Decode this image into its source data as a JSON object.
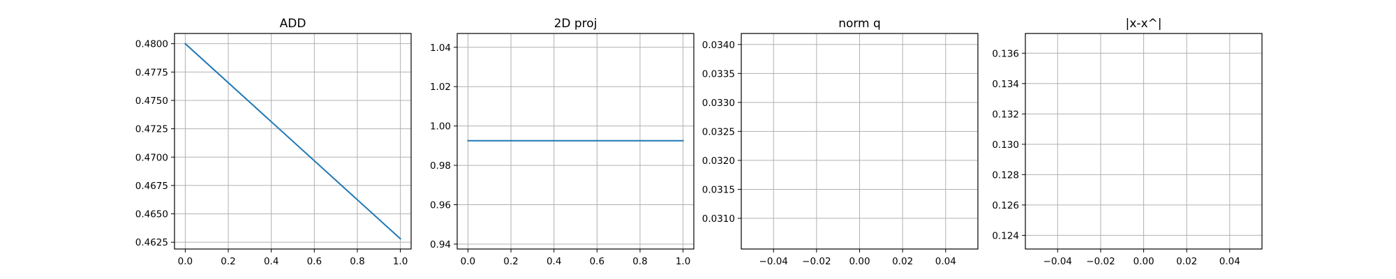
{
  "chart_data": [
    {
      "type": "line",
      "title": "ADD",
      "xlim": [
        -0.05,
        1.05
      ],
      "ylim": [
        0.4619,
        0.4809
      ],
      "x_ticks": [
        0.0,
        0.2,
        0.4,
        0.6,
        0.8,
        1.0
      ],
      "x_tick_labels": [
        "0.0",
        "0.2",
        "0.4",
        "0.6",
        "0.8",
        "1.0"
      ],
      "y_ticks": [
        0.4625,
        0.465,
        0.4675,
        0.47,
        0.4725,
        0.475,
        0.4775,
        0.48
      ],
      "y_tick_labels": [
        "0.4625",
        "0.4650",
        "0.4675",
        "0.4700",
        "0.4725",
        "0.4750",
        "0.4775",
        "0.4800"
      ],
      "grid": true,
      "series": [
        {
          "color": "#1f77b4",
          "x": [
            0.0,
            1.0
          ],
          "y": [
            0.48,
            0.4628
          ]
        }
      ]
    },
    {
      "type": "line",
      "title": "2D proj",
      "xlim": [
        -0.05,
        1.05
      ],
      "ylim": [
        0.9375,
        1.047
      ],
      "x_ticks": [
        0.0,
        0.2,
        0.4,
        0.6,
        0.8,
        1.0
      ],
      "x_tick_labels": [
        "0.0",
        "0.2",
        "0.4",
        "0.6",
        "0.8",
        "1.0"
      ],
      "y_ticks": [
        0.94,
        0.96,
        0.98,
        1.0,
        1.02,
        1.04
      ],
      "y_tick_labels": [
        "0.94",
        "0.96",
        "0.98",
        "1.00",
        "1.02",
        "1.04"
      ],
      "grid": true,
      "series": [
        {
          "color": "#1f77b4",
          "x": [
            0.0,
            1.0
          ],
          "y": [
            0.9925,
            0.9925
          ]
        }
      ]
    },
    {
      "type": "line",
      "title": "norm q",
      "xlim": [
        -0.055,
        0.055
      ],
      "ylim": [
        0.03047,
        0.03419
      ],
      "x_ticks": [
        -0.04,
        -0.02,
        0.0,
        0.02,
        0.04
      ],
      "x_tick_labels": [
        "−0.04",
        "−0.02",
        "0.00",
        "0.02",
        "0.04"
      ],
      "y_ticks": [
        0.031,
        0.0315,
        0.032,
        0.0325,
        0.033,
        0.0335,
        0.034
      ],
      "y_tick_labels": [
        "0.0310",
        "0.0315",
        "0.0320",
        "0.0325",
        "0.0330",
        "0.0335",
        "0.0340"
      ],
      "grid": true,
      "series": []
    },
    {
      "type": "line",
      "title": "|x-x^|",
      "xlim": [
        -0.055,
        0.055
      ],
      "ylim": [
        0.1231,
        0.1373
      ],
      "x_ticks": [
        -0.04,
        -0.02,
        0.0,
        0.02,
        0.04
      ],
      "x_tick_labels": [
        "−0.04",
        "−0.02",
        "0.00",
        "0.02",
        "0.04"
      ],
      "y_ticks": [
        0.124,
        0.126,
        0.128,
        0.13,
        0.132,
        0.134,
        0.136
      ],
      "y_tick_labels": [
        "0.124",
        "0.126",
        "0.128",
        "0.130",
        "0.132",
        "0.134",
        "0.136"
      ],
      "grid": true,
      "series": []
    }
  ]
}
